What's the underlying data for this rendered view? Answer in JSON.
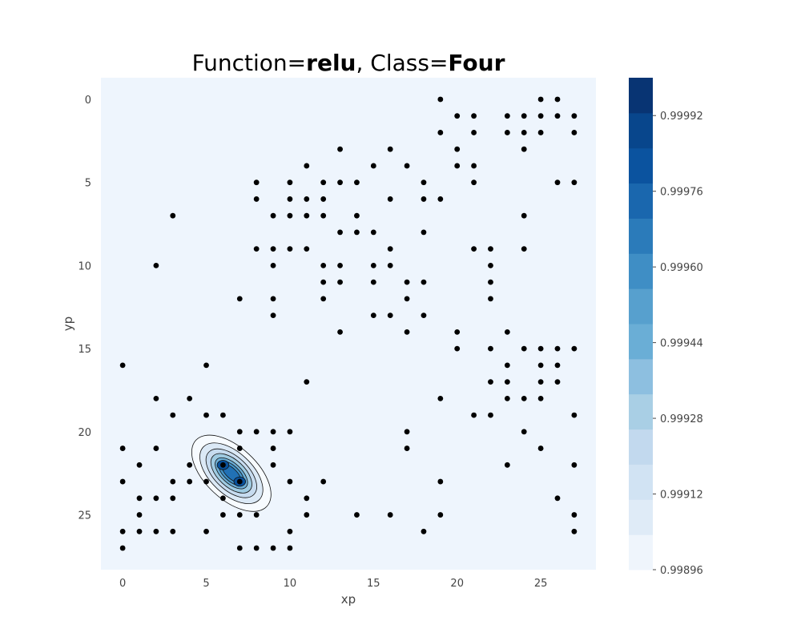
{
  "chart_data": {
    "type": "scatter",
    "title": {
      "parts": [
        {
          "text": "Function=",
          "bold": false
        },
        {
          "text": "relu",
          "bold": true
        },
        {
          "text": ", Class=",
          "bold": false
        },
        {
          "text": "Four",
          "bold": true
        }
      ]
    },
    "xlabel": "xp",
    "ylabel": "yp",
    "xlim": [
      -1.3,
      28.3
    ],
    "ylim": [
      28.3,
      -1.3
    ],
    "y_inverted": true,
    "xticks": [
      0,
      5,
      10,
      15,
      20,
      25
    ],
    "yticks": [
      0,
      5,
      10,
      15,
      20,
      25
    ],
    "grid": false,
    "background_color": "#eef5fd",
    "point_color": "#000000",
    "points": [
      [
        19,
        0
      ],
      [
        25,
        0
      ],
      [
        26,
        0
      ],
      [
        20,
        1
      ],
      [
        21,
        1
      ],
      [
        23,
        1
      ],
      [
        24,
        1
      ],
      [
        25,
        1
      ],
      [
        26,
        1
      ],
      [
        27,
        1
      ],
      [
        19,
        2
      ],
      [
        21,
        2
      ],
      [
        23,
        2
      ],
      [
        24,
        2
      ],
      [
        25,
        2
      ],
      [
        27,
        2
      ],
      [
        13,
        3
      ],
      [
        16,
        3
      ],
      [
        20,
        3
      ],
      [
        24,
        3
      ],
      [
        11,
        4
      ],
      [
        15,
        4
      ],
      [
        17,
        4
      ],
      [
        20,
        4
      ],
      [
        21,
        4
      ],
      [
        8,
        5
      ],
      [
        10,
        5
      ],
      [
        12,
        5
      ],
      [
        13,
        5
      ],
      [
        14,
        5
      ],
      [
        18,
        5
      ],
      [
        21,
        5
      ],
      [
        26,
        5
      ],
      [
        27,
        5
      ],
      [
        8,
        6
      ],
      [
        10,
        6
      ],
      [
        11,
        6
      ],
      [
        12,
        6
      ],
      [
        16,
        6
      ],
      [
        18,
        6
      ],
      [
        19,
        6
      ],
      [
        3,
        7
      ],
      [
        9,
        7
      ],
      [
        10,
        7
      ],
      [
        11,
        7
      ],
      [
        12,
        7
      ],
      [
        14,
        7
      ],
      [
        24,
        7
      ],
      [
        13,
        8
      ],
      [
        14,
        8
      ],
      [
        15,
        8
      ],
      [
        18,
        8
      ],
      [
        8,
        9
      ],
      [
        9,
        9
      ],
      [
        10,
        9
      ],
      [
        11,
        9
      ],
      [
        16,
        9
      ],
      [
        21,
        9
      ],
      [
        22,
        9
      ],
      [
        24,
        9
      ],
      [
        2,
        10
      ],
      [
        9,
        10
      ],
      [
        12,
        10
      ],
      [
        13,
        10
      ],
      [
        15,
        10
      ],
      [
        16,
        10
      ],
      [
        22,
        10
      ],
      [
        12,
        11
      ],
      [
        13,
        11
      ],
      [
        15,
        11
      ],
      [
        17,
        11
      ],
      [
        18,
        11
      ],
      [
        22,
        11
      ],
      [
        7,
        12
      ],
      [
        9,
        12
      ],
      [
        12,
        12
      ],
      [
        17,
        12
      ],
      [
        22,
        12
      ],
      [
        9,
        13
      ],
      [
        15,
        13
      ],
      [
        16,
        13
      ],
      [
        18,
        13
      ],
      [
        13,
        14
      ],
      [
        17,
        14
      ],
      [
        20,
        14
      ],
      [
        23,
        14
      ],
      [
        20,
        15
      ],
      [
        22,
        15
      ],
      [
        24,
        15
      ],
      [
        25,
        15
      ],
      [
        26,
        15
      ],
      [
        27,
        15
      ],
      [
        0,
        16
      ],
      [
        5,
        16
      ],
      [
        23,
        16
      ],
      [
        25,
        16
      ],
      [
        26,
        16
      ],
      [
        11,
        17
      ],
      [
        22,
        17
      ],
      [
        23,
        17
      ],
      [
        25,
        17
      ],
      [
        26,
        17
      ],
      [
        2,
        18
      ],
      [
        4,
        18
      ],
      [
        19,
        18
      ],
      [
        23,
        18
      ],
      [
        24,
        18
      ],
      [
        25,
        18
      ],
      [
        3,
        19
      ],
      [
        5,
        19
      ],
      [
        6,
        19
      ],
      [
        21,
        19
      ],
      [
        22,
        19
      ],
      [
        27,
        19
      ],
      [
        7,
        20
      ],
      [
        8,
        20
      ],
      [
        9,
        20
      ],
      [
        10,
        20
      ],
      [
        17,
        20
      ],
      [
        24,
        20
      ],
      [
        0,
        21
      ],
      [
        2,
        21
      ],
      [
        7,
        21
      ],
      [
        9,
        21
      ],
      [
        17,
        21
      ],
      [
        25,
        21
      ],
      [
        1,
        22
      ],
      [
        4,
        22
      ],
      [
        6,
        22
      ],
      [
        9,
        22
      ],
      [
        23,
        22
      ],
      [
        27,
        22
      ],
      [
        0,
        23
      ],
      [
        3,
        23
      ],
      [
        4,
        23
      ],
      [
        5,
        23
      ],
      [
        7,
        23
      ],
      [
        10,
        23
      ],
      [
        12,
        23
      ],
      [
        19,
        23
      ],
      [
        1,
        24
      ],
      [
        2,
        24
      ],
      [
        3,
        24
      ],
      [
        6,
        24
      ],
      [
        11,
        24
      ],
      [
        26,
        24
      ],
      [
        1,
        25
      ],
      [
        6,
        25
      ],
      [
        7,
        25
      ],
      [
        8,
        25
      ],
      [
        11,
        25
      ],
      [
        14,
        25
      ],
      [
        16,
        25
      ],
      [
        19,
        25
      ],
      [
        27,
        25
      ],
      [
        0,
        26
      ],
      [
        1,
        26
      ],
      [
        2,
        26
      ],
      [
        3,
        26
      ],
      [
        5,
        26
      ],
      [
        10,
        26
      ],
      [
        18,
        26
      ],
      [
        27,
        26
      ],
      [
        0,
        27
      ],
      [
        7,
        27
      ],
      [
        8,
        27
      ],
      [
        9,
        27
      ],
      [
        10,
        27
      ]
    ],
    "contour": {
      "peaks": [
        [
          6,
          22
        ],
        [
          7,
          23
        ]
      ],
      "fill_colors": [
        "#f7fbff",
        "#dbe9f6",
        "#c6dbef",
        "#9ecae1",
        "#6baed6",
        "#4292c6",
        "#2171b5"
      ]
    },
    "colorbar": {
      "ticks": [
        "0.99896",
        "0.99912",
        "0.99928",
        "0.99944",
        "0.99960",
        "0.99976",
        "0.99992"
      ],
      "tick_values": [
        0.99896,
        0.99912,
        0.99928,
        0.99944,
        0.9996,
        0.99976,
        0.99992
      ],
      "range": [
        0.99896,
        1.0
      ],
      "colors": [
        "#eff5fc",
        "#dfebf7",
        "#d1e3f3",
        "#c2d9ee",
        "#a9cfe5",
        "#8dbfe0",
        "#6aaed6",
        "#57a0ce",
        "#3f8ec5",
        "#2b7bba",
        "#1a67ae",
        "#0b539f",
        "#08468c",
        "#083473"
      ]
    }
  }
}
